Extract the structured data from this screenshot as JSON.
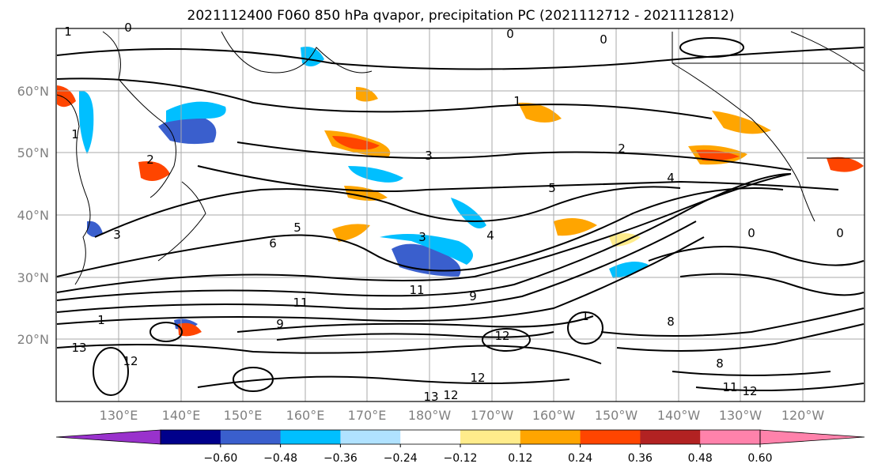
{
  "title": "2021112400 F060 850 hPa qvapor, precipitation PC (2021112712 - 2021112812)",
  "lat_labels": [
    "60°N",
    "50°N",
    "40°N",
    "30°N",
    "20°N"
  ],
  "lon_labels": [
    "130°E",
    "140°E",
    "150°E",
    "160°E",
    "170°E",
    "180°W",
    "170°W",
    "160°W",
    "150°W",
    "140°W",
    "130°W",
    "120°W"
  ],
  "contour_labels": [
    "1",
    "0",
    "0",
    "0",
    "1",
    "1",
    "2",
    "3",
    "2",
    "4",
    "5",
    "5",
    "6",
    "3",
    "4",
    "3",
    "0",
    "1",
    "9",
    "11",
    "11",
    "9",
    "12",
    "13",
    "12",
    "12",
    "13",
    "12",
    "8",
    "11",
    "12",
    "8",
    "0",
    "1"
  ],
  "colorbar": {
    "ticks": [
      "−0.60",
      "−0.48",
      "−0.36",
      "−0.24",
      "−0.12",
      "0.12",
      "0.24",
      "0.36",
      "0.48",
      "0.60"
    ],
    "colors": [
      "#9932cc",
      "#00008b",
      "#3a5fcd",
      "#00bfff",
      "#b0e2ff",
      "#ffffff",
      "#ffec8b",
      "#ffa500",
      "#ff4500",
      "#b22222",
      "#ff82ab",
      "#ff82ab"
    ]
  }
}
